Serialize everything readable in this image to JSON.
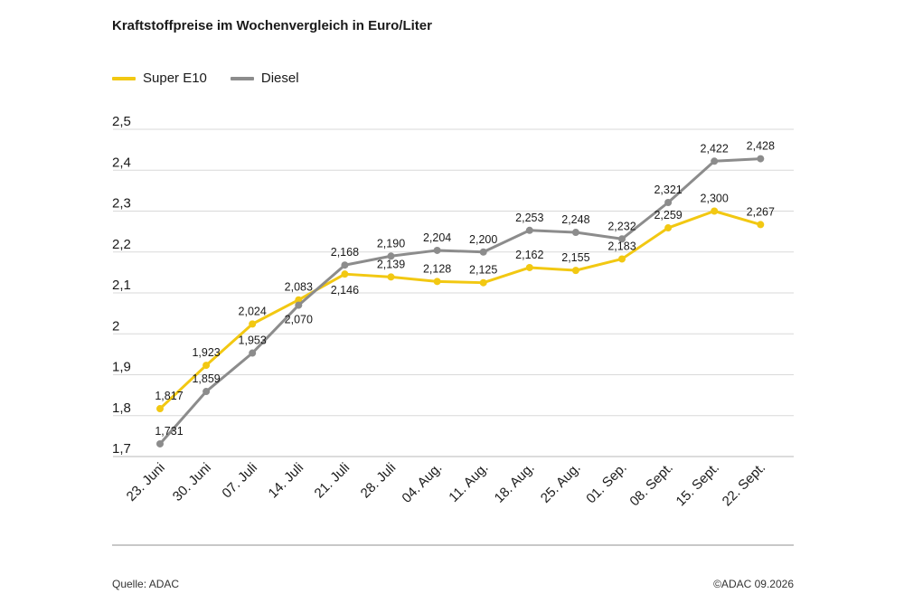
{
  "chart_data": {
    "type": "line",
    "title": "Kraftstoffpreise im Wochenvergleich in Euro/Liter",
    "categories": [
      "23. Juni",
      "30. Juni",
      "07. Juli",
      "14. Juli",
      "21. Juli",
      "28. Juli",
      "04. Aug.",
      "11. Aug.",
      "18. Aug.",
      "25. Aug.",
      "01. Sep.",
      "08. Sept.",
      "15. Sept.",
      "22. Sept."
    ],
    "series": [
      {
        "name": "Super E10",
        "color": "#f2c812",
        "values": [
          1.817,
          1.923,
          2.024,
          2.083,
          2.146,
          2.139,
          2.128,
          2.125,
          2.162,
          2.155,
          2.183,
          2.259,
          2.3,
          2.267
        ],
        "labels": [
          "1,817",
          "1,923",
          "2,024",
          "2,083",
          "2,146",
          "2,139",
          "2,128",
          "2,125",
          "2,162",
          "2,155",
          "2,183",
          "2,259",
          "2,300",
          "2,267"
        ]
      },
      {
        "name": "Diesel",
        "color": "#8c8c8c",
        "values": [
          1.731,
          1.859,
          1.953,
          2.07,
          2.168,
          2.19,
          2.204,
          2.2,
          2.253,
          2.248,
          2.232,
          2.321,
          2.422,
          2.428
        ],
        "labels": [
          "1,731",
          "1,859",
          "1,953",
          "2,070",
          "2,168",
          "2,190",
          "2,204",
          "2,200",
          "2,253",
          "2,248",
          "2,232",
          "2,321",
          "2,422",
          "2,428"
        ]
      }
    ],
    "ylim": [
      1.7,
      2.5
    ],
    "yticks": [
      1.7,
      1.8,
      1.9,
      2.0,
      2.1,
      2.2,
      2.3,
      2.4,
      2.5
    ],
    "ytick_labels": [
      "1,7",
      "1,8",
      "1,9",
      "2",
      "2,1",
      "2,2",
      "2,3",
      "2,4",
      "2,5"
    ],
    "grid": true,
    "legend": "top-left"
  },
  "footer": {
    "source": "Quelle: ADAC",
    "copyright": "©ADAC 09.2026"
  }
}
